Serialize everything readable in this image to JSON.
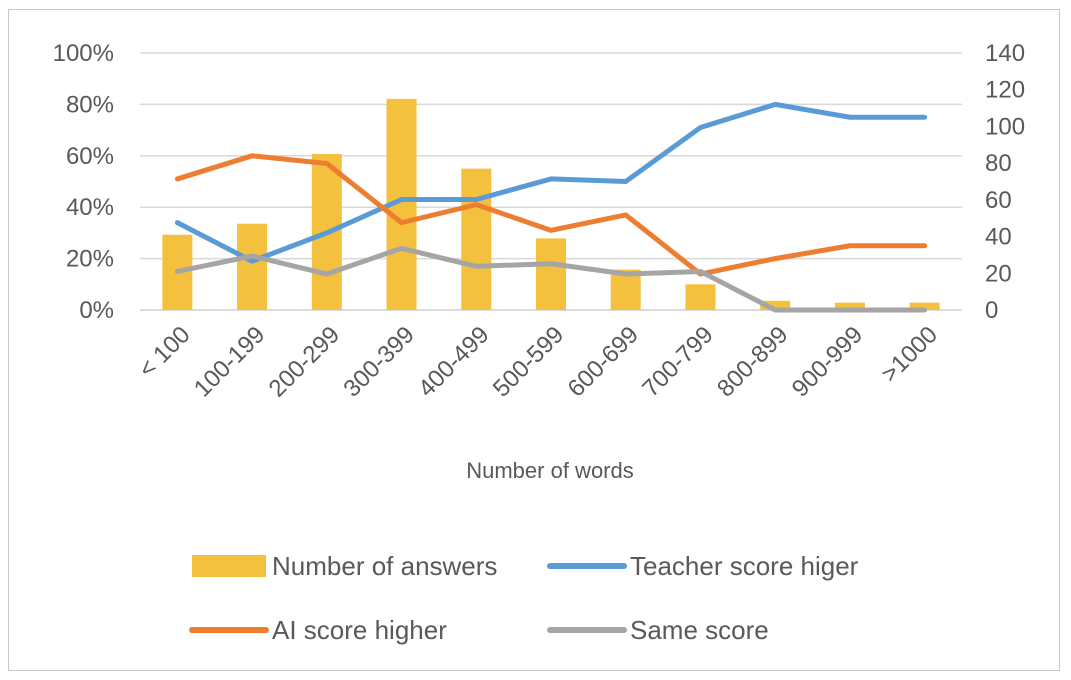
{
  "chart_data": {
    "type": "bar+line",
    "title": "",
    "xlabel": "Number of words",
    "ylabel_left": "",
    "ylabel_right": "",
    "categories": [
      "< 100",
      "100-199",
      "200-299",
      "300-399",
      "400-499",
      "500-599",
      "600-699",
      "700-799",
      "800-899",
      "900-999",
      ">1000"
    ],
    "ylim_left": [
      0,
      100
    ],
    "yticks_left": [
      "0%",
      "20%",
      "40%",
      "60%",
      "80%",
      "100%"
    ],
    "ylim_right": [
      0,
      140
    ],
    "yticks_right": [
      "0",
      "20",
      "40",
      "60",
      "80",
      "100",
      "120",
      "140"
    ],
    "grid": true,
    "legend_position": "bottom",
    "series": [
      {
        "name": "Number of answers",
        "type": "bar",
        "axis": "right",
        "color": "#F4C13E",
        "values": [
          41,
          47,
          85,
          115,
          77,
          39,
          22,
          14,
          5,
          4,
          4
        ]
      },
      {
        "name": "Teacher score higer",
        "type": "line",
        "axis": "left",
        "color": "#5B9BD5",
        "values": [
          34,
          19,
          30,
          43,
          43,
          51,
          50,
          71,
          80,
          75,
          75
        ]
      },
      {
        "name": "AI score higher",
        "type": "line",
        "axis": "left",
        "color": "#ED7D31",
        "values": [
          51,
          60,
          57,
          34,
          41,
          31,
          37,
          14,
          20,
          25,
          25
        ]
      },
      {
        "name": "Same score",
        "type": "line",
        "axis": "left",
        "color": "#A5A5A5",
        "values": [
          15,
          21,
          14,
          24,
          17,
          18,
          14,
          15,
          0,
          0,
          0
        ]
      }
    ]
  }
}
